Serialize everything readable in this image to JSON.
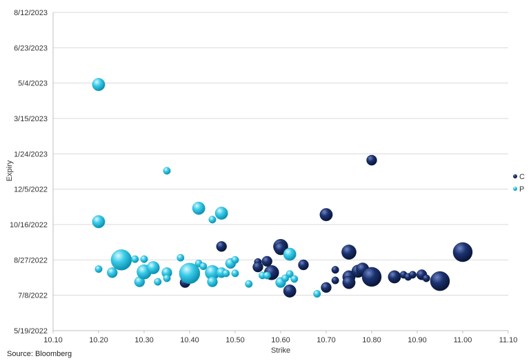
{
  "chart_data": {
    "type": "scatter",
    "subtype": "bubble",
    "title": "",
    "xlabel": "Strike",
    "ylabel": "Expiry",
    "xlim": [
      10.1,
      11.1
    ],
    "x_ticks": [
      "10.10",
      "10.20",
      "10.30",
      "10.40",
      "10.50",
      "10.60",
      "10.70",
      "10.80",
      "10.90",
      "11.00",
      "11.10"
    ],
    "ylim": [
      "2022-05-19",
      "2023-08-12"
    ],
    "y_ticks": [
      "5/19/2022",
      "7/8/2022",
      "8/27/2022",
      "10/16/2022",
      "12/5/2022",
      "1/24/2023",
      "3/15/2023",
      "5/4/2023",
      "6/23/2023",
      "8/12/2023"
    ],
    "grid": "horizontal",
    "legend_position": "right",
    "series": [
      {
        "name": "C",
        "color": "#13265c",
        "points": [
          {
            "x": 10.47,
            "y": "2022-09-15",
            "size": 2
          },
          {
            "x": 10.39,
            "y": "2022-07-26",
            "size": 2
          },
          {
            "x": 10.55,
            "y": "2022-08-24",
            "size": 1
          },
          {
            "x": 10.55,
            "y": "2022-08-17",
            "size": 2
          },
          {
            "x": 10.57,
            "y": "2022-08-25",
            "size": 2
          },
          {
            "x": 10.58,
            "y": "2022-08-09",
            "size": 4
          },
          {
            "x": 10.6,
            "y": "2022-09-15",
            "size": 4
          },
          {
            "x": 10.6,
            "y": "2022-09-12",
            "size": 3
          },
          {
            "x": 10.62,
            "y": "2022-07-14",
            "size": 3
          },
          {
            "x": 10.65,
            "y": "2022-08-20",
            "size": 2
          },
          {
            "x": 10.7,
            "y": "2022-10-30",
            "size": 3
          },
          {
            "x": 10.7,
            "y": "2022-07-19",
            "size": 2
          },
          {
            "x": 10.72,
            "y": "2022-08-13",
            "size": 1
          },
          {
            "x": 10.72,
            "y": "2022-07-29",
            "size": 1
          },
          {
            "x": 10.75,
            "y": "2022-09-07",
            "size": 4
          },
          {
            "x": 10.75,
            "y": "2022-08-03",
            "size": 3
          },
          {
            "x": 10.75,
            "y": "2022-07-26",
            "size": 3
          },
          {
            "x": 10.77,
            "y": "2022-08-11",
            "size": 3
          },
          {
            "x": 10.78,
            "y": "2022-08-14",
            "size": 3
          },
          {
            "x": 10.8,
            "y": "2023-01-15",
            "size": 2
          },
          {
            "x": 10.8,
            "y": "2022-08-03",
            "size": 7
          },
          {
            "x": 10.85,
            "y": "2022-08-03",
            "size": 3
          },
          {
            "x": 10.87,
            "y": "2022-08-06",
            "size": 1
          },
          {
            "x": 10.88,
            "y": "2022-08-03",
            "size": 1
          },
          {
            "x": 10.89,
            "y": "2022-08-06",
            "size": 1
          },
          {
            "x": 10.91,
            "y": "2022-08-06",
            "size": 2
          },
          {
            "x": 10.92,
            "y": "2022-08-01",
            "size": 1
          },
          {
            "x": 10.95,
            "y": "2022-07-28",
            "size": 7
          },
          {
            "x": 11.0,
            "y": "2022-09-07",
            "size": 7
          }
        ]
      },
      {
        "name": "P",
        "color": "#29c4e3",
        "points": [
          {
            "x": 10.2,
            "y": "2023-05-02",
            "size": 3
          },
          {
            "x": 10.2,
            "y": "2022-10-20",
            "size": 3
          },
          {
            "x": 10.2,
            "y": "2022-08-14",
            "size": 1
          },
          {
            "x": 10.23,
            "y": "2022-08-09",
            "size": 2
          },
          {
            "x": 10.25,
            "y": "2022-08-27",
            "size": 8
          },
          {
            "x": 10.28,
            "y": "2022-08-28",
            "size": 1
          },
          {
            "x": 10.29,
            "y": "2022-07-27",
            "size": 2
          },
          {
            "x": 10.3,
            "y": "2022-08-28",
            "size": 1
          },
          {
            "x": 10.3,
            "y": "2022-08-10",
            "size": 4
          },
          {
            "x": 10.32,
            "y": "2022-08-16",
            "size": 3
          },
          {
            "x": 10.33,
            "y": "2022-07-27",
            "size": 1
          },
          {
            "x": 10.35,
            "y": "2022-12-31",
            "size": 1
          },
          {
            "x": 10.35,
            "y": "2022-08-09",
            "size": 2
          },
          {
            "x": 10.35,
            "y": "2022-08-01",
            "size": 1
          },
          {
            "x": 10.38,
            "y": "2022-08-30",
            "size": 1
          },
          {
            "x": 10.4,
            "y": "2022-08-08",
            "size": 8
          },
          {
            "x": 10.42,
            "y": "2022-11-08",
            "size": 3
          },
          {
            "x": 10.42,
            "y": "2022-08-22",
            "size": 1
          },
          {
            "x": 10.43,
            "y": "2022-08-18",
            "size": 1
          },
          {
            "x": 10.45,
            "y": "2022-10-23",
            "size": 1
          },
          {
            "x": 10.45,
            "y": "2022-08-09",
            "size": 4
          },
          {
            "x": 10.45,
            "y": "2022-07-27",
            "size": 2
          },
          {
            "x": 10.47,
            "y": "2022-11-01",
            "size": 3
          },
          {
            "x": 10.47,
            "y": "2022-08-09",
            "size": 2
          },
          {
            "x": 10.48,
            "y": "2022-08-08",
            "size": 1
          },
          {
            "x": 10.49,
            "y": "2022-08-22",
            "size": 2
          },
          {
            "x": 10.5,
            "y": "2022-08-27",
            "size": 1
          },
          {
            "x": 10.5,
            "y": "2022-08-08",
            "size": 1
          },
          {
            "x": 10.53,
            "y": "2022-07-24",
            "size": 1
          },
          {
            "x": 10.56,
            "y": "2022-08-05",
            "size": 1
          },
          {
            "x": 10.57,
            "y": "2022-08-05",
            "size": 1
          },
          {
            "x": 10.6,
            "y": "2022-07-26",
            "size": 2
          },
          {
            "x": 10.61,
            "y": "2022-08-01",
            "size": 1
          },
          {
            "x": 10.62,
            "y": "2022-09-04",
            "size": 3
          },
          {
            "x": 10.62,
            "y": "2022-08-07",
            "size": 1
          },
          {
            "x": 10.63,
            "y": "2022-07-31",
            "size": 1
          },
          {
            "x": 10.68,
            "y": "2022-07-10",
            "size": 1
          }
        ]
      }
    ]
  },
  "source": "Source: Bloomberg"
}
